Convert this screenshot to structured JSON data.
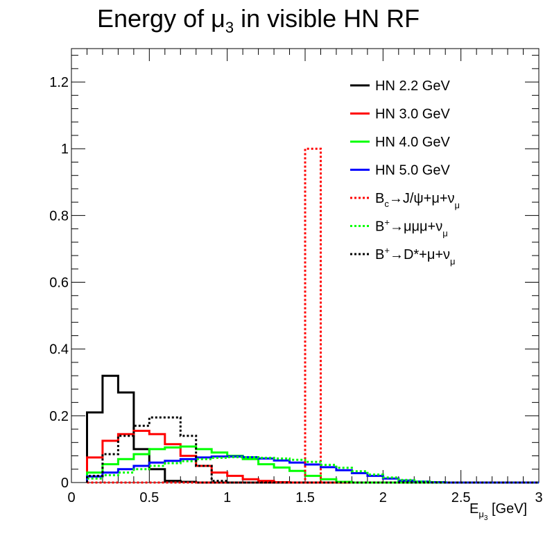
{
  "title": {
    "main": "Energy of μ",
    "sub": "3",
    "rest": " in visible HN RF"
  },
  "chart_data": {
    "type": "histogram",
    "xlabel": {
      "main": "E",
      "sub": "μ",
      "subsub": "3",
      "unit": " [GeV]"
    },
    "xlim": [
      0,
      3
    ],
    "ylim": [
      0,
      1.3
    ],
    "xticks": [
      0,
      0.5,
      1,
      1.5,
      2,
      2.5,
      3
    ],
    "xtick_labels": [
      "0",
      "0.5",
      "1",
      "1.5",
      "2",
      "2.5",
      "3"
    ],
    "yticks": [
      0,
      0.2,
      0.4,
      0.6,
      0.8,
      1,
      1.2
    ],
    "ytick_labels": [
      "0",
      "0.2",
      "0.4",
      "0.6",
      "0.8",
      "1",
      "1.2"
    ],
    "bin_edges": [
      0,
      0.1,
      0.2,
      0.3,
      0.4,
      0.5,
      0.6,
      0.7,
      0.8,
      0.9,
      1.0,
      1.1,
      1.2,
      1.3,
      1.4,
      1.5,
      1.6,
      1.7,
      1.8,
      1.9,
      2.0,
      2.1,
      2.2,
      2.3,
      2.4,
      2.5,
      2.6,
      2.7,
      2.8,
      2.9,
      3.0
    ],
    "series": [
      {
        "name": "HN 2.2 GeV",
        "color": "#000000",
        "style": "solid",
        "values": [
          0,
          0.21,
          0.32,
          0.27,
          0.1,
          0.04,
          0.005,
          0.002,
          0,
          0,
          0,
          0,
          0,
          0,
          0,
          0,
          0,
          0,
          0,
          0,
          0,
          0,
          0,
          0,
          0,
          0,
          0,
          0,
          0,
          0
        ]
      },
      {
        "name": "HN 3.0 GeV",
        "color": "#ff0000",
        "style": "solid",
        "values": [
          0,
          0.075,
          0.125,
          0.145,
          0.155,
          0.145,
          0.115,
          0.08,
          0.05,
          0.03,
          0.02,
          0.01,
          0.005,
          0.001,
          0,
          0,
          0,
          0,
          0,
          0,
          0,
          0,
          0,
          0,
          0,
          0,
          0,
          0,
          0,
          0
        ]
      },
      {
        "name": "HN 4.0 GeV",
        "color": "#00ff00",
        "style": "solid",
        "values": [
          0,
          0.03,
          0.055,
          0.07,
          0.085,
          0.1,
          0.105,
          0.108,
          0.1,
          0.09,
          0.08,
          0.07,
          0.055,
          0.045,
          0.035,
          0.02,
          0.01,
          0.002,
          0,
          0,
          0,
          0,
          0,
          0,
          0,
          0,
          0,
          0,
          0,
          0
        ]
      },
      {
        "name": "HN 5.0 GeV",
        "color": "#0000ff",
        "style": "solid",
        "values": [
          0,
          0.018,
          0.03,
          0.04,
          0.05,
          0.06,
          0.065,
          0.07,
          0.075,
          0.078,
          0.078,
          0.076,
          0.072,
          0.066,
          0.06,
          0.054,
          0.046,
          0.037,
          0.028,
          0.02,
          0.012,
          0.006,
          0.003,
          0.001,
          0,
          0,
          0,
          0,
          0,
          0
        ]
      },
      {
        "name": "B_c→J/ψ+μ+ν_μ",
        "label": {
          "a": "B",
          "a_sub": "c",
          "b": "→J/ψ+μ+ν",
          "b_sub": "μ"
        },
        "color": "#ff0000",
        "style": "dotted",
        "values": [
          0,
          0,
          0,
          0,
          0,
          0,
          0,
          0,
          0,
          0,
          0,
          0,
          0,
          0,
          0,
          1.0,
          0,
          0,
          0,
          0,
          0,
          0,
          0,
          0,
          0,
          0,
          0,
          0,
          0,
          0
        ]
      },
      {
        "name": "B^+→μμμ+ν_μ",
        "label": {
          "a": "B",
          "a_sup": "+",
          "b": "→μμμ+ν",
          "b_sub": "μ"
        },
        "color": "#00ff00",
        "style": "dotted",
        "values": [
          0,
          0.012,
          0.022,
          0.03,
          0.04,
          0.05,
          0.058,
          0.064,
          0.07,
          0.074,
          0.076,
          0.076,
          0.074,
          0.072,
          0.068,
          0.062,
          0.053,
          0.044,
          0.034,
          0.024,
          0.015,
          0.008,
          0.003,
          0.001,
          0,
          0,
          0,
          0,
          0,
          0
        ]
      },
      {
        "name": "B^+→D*+μ+ν_μ",
        "label": {
          "a": "B",
          "a_sup": "+",
          "b": "→D*+μ+ν",
          "b_sub": "μ"
        },
        "color": "#000000",
        "style": "dotted",
        "values": [
          0,
          0.02,
          0.085,
          0.14,
          0.17,
          0.195,
          0.195,
          0.14,
          0.05,
          0.005,
          0,
          0,
          0,
          0,
          0,
          0,
          0,
          0,
          0,
          0,
          0,
          0,
          0,
          0,
          0,
          0,
          0,
          0,
          0,
          0
        ]
      }
    ]
  }
}
